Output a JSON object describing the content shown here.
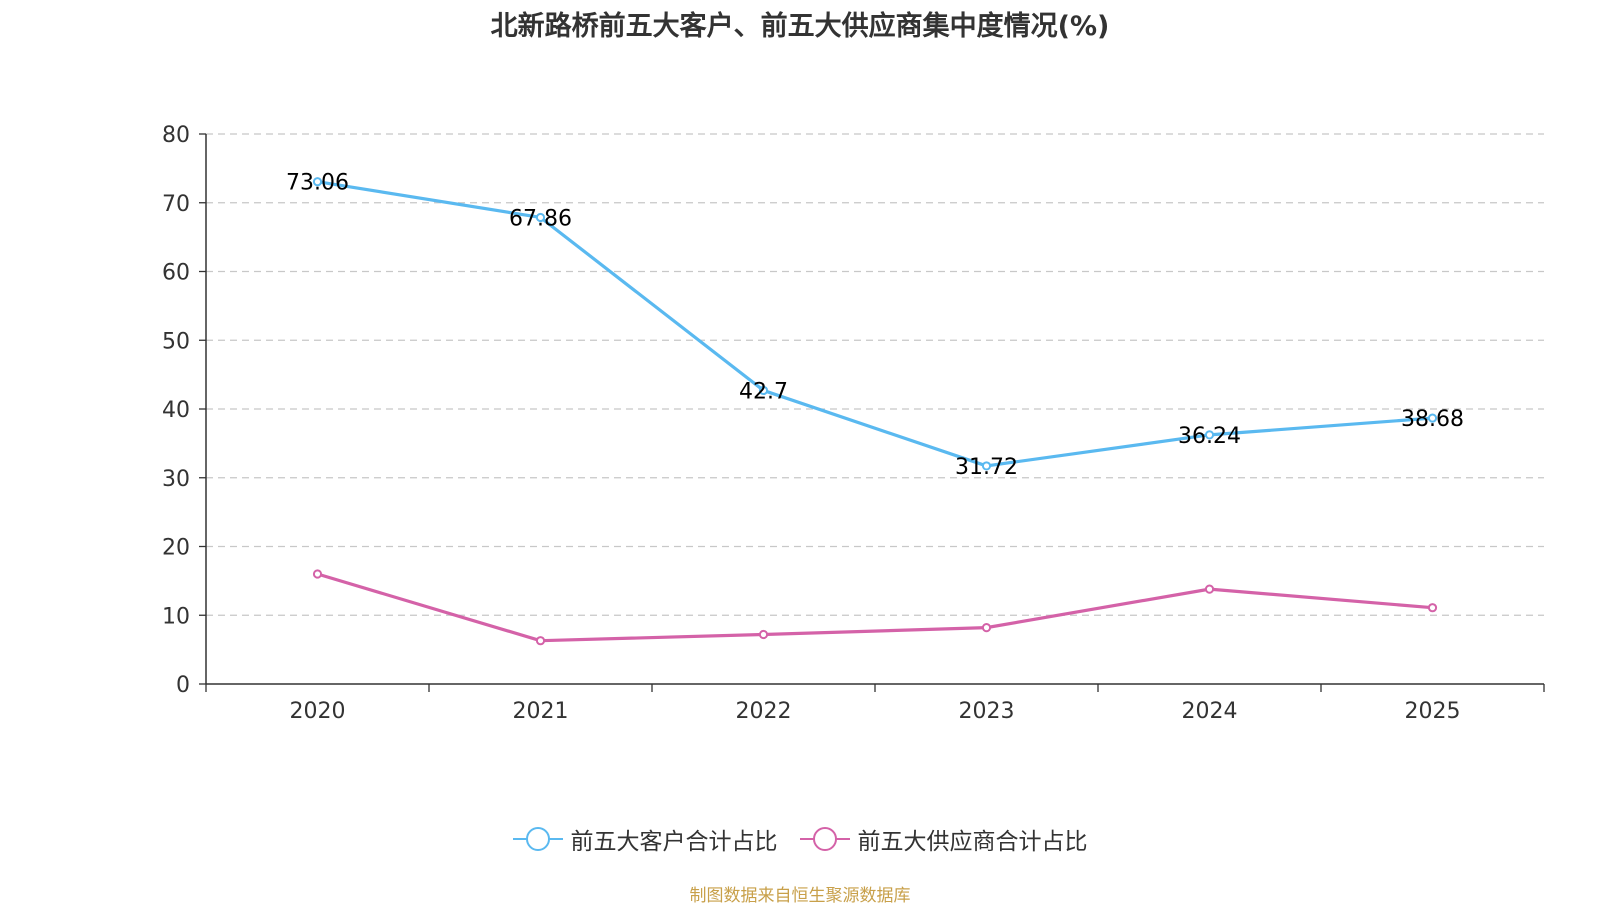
{
  "chart_data": {
    "type": "line",
    "title": "北新路桥前五大客户、前五大供应商集中度情况(%)",
    "categories": [
      "2020",
      "2021",
      "2022",
      "2023",
      "2024",
      "2025"
    ],
    "ylim": [
      0,
      80
    ],
    "yticks": [
      0,
      10,
      20,
      30,
      40,
      50,
      60,
      70,
      80
    ],
    "grid": true,
    "legend_position": "bottom-center",
    "series": [
      {
        "name": "前五大客户合计占比",
        "color": "#5ab9f0",
        "values": [
          73.06,
          67.86,
          42.7,
          31.72,
          36.24,
          38.68
        ],
        "labels": [
          "73.06",
          "67.86",
          "42.7",
          "31.72",
          "36.24",
          "38.68"
        ],
        "show_labels": true
      },
      {
        "name": "前五大供应商合计占比",
        "color": "#d462a8",
        "values": [
          16.0,
          6.3,
          7.2,
          8.2,
          13.8,
          11.1
        ],
        "show_labels": false
      }
    ]
  },
  "source_text": "制图数据来自恒生聚源数据库"
}
